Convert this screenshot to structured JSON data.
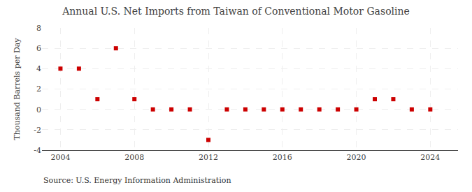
{
  "chart_data": {
    "type": "scatter",
    "title": "Annual U.S. Net Imports from Taiwan of Conventional Motor Gasoline",
    "ylabel": "Thousand Barrels per Day",
    "annotation": "Source: U.S. Energy Information Administration",
    "x": [
      2004,
      2005,
      2006,
      2007,
      2008,
      2009,
      2010,
      2011,
      2012,
      2013,
      2014,
      2015,
      2016,
      2017,
      2018,
      2019,
      2020,
      2021,
      2022,
      2023,
      2024
    ],
    "values": [
      4,
      4,
      1,
      6,
      1,
      0,
      0,
      0,
      -3,
      0,
      0,
      0,
      0,
      0,
      0,
      0,
      0,
      1,
      1,
      0,
      0
    ],
    "color": "#cc0000",
    "marker": "square",
    "xlim": [
      2003.0,
      2025.5
    ],
    "ylim": [
      -4,
      8
    ],
    "xticks": [
      2004,
      2008,
      2012,
      2016,
      2020,
      2024
    ],
    "yticks": [
      -4,
      -2,
      0,
      2,
      4,
      6,
      8
    ],
    "grid": true
  }
}
